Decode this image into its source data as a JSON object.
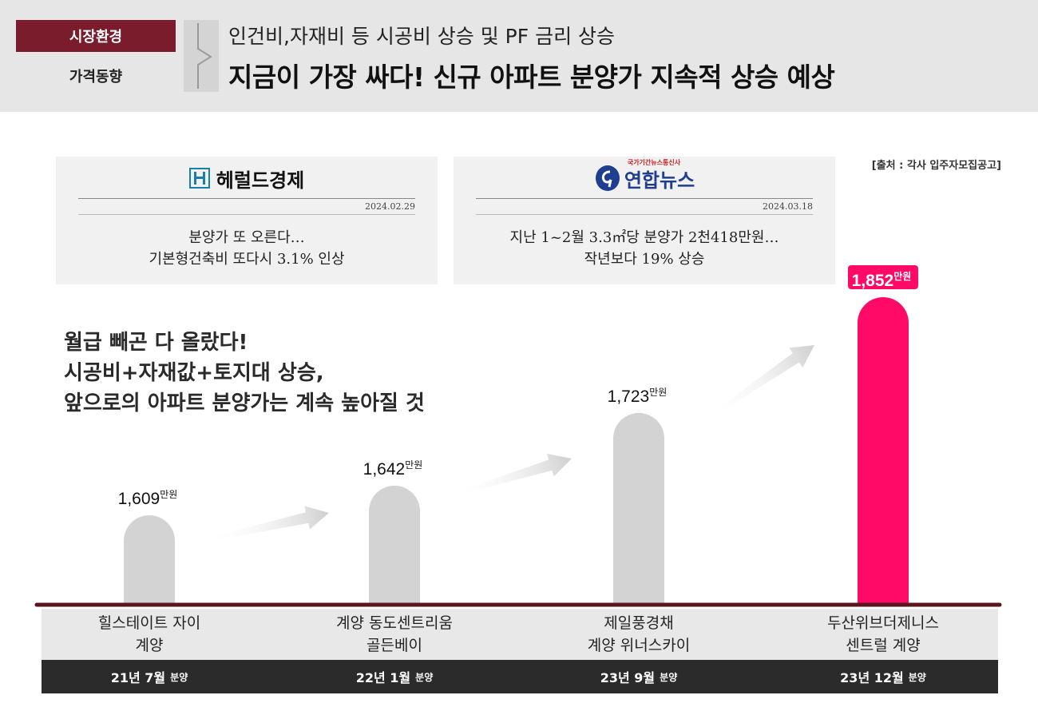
{
  "header": {
    "tag_primary": "시장환경",
    "tag_secondary": "가격동향",
    "subtitle": "인건비,자재비 등 시공비 상승 및 PF 금리 상승",
    "title": "지금이 가장 싸다! 신규 아파트 분양가 지속적 상승 예상"
  },
  "source": "[출처 : 각사 입주자모집공고]",
  "news": [
    {
      "publisher": "헤럴드경제",
      "date": "2024.02.29",
      "headline_line1": "분양가 또 오른다…",
      "headline_line2": "기본형건축비 또다시 3.1% 인상"
    },
    {
      "publisher": "연합뉴스",
      "publisher_tagline": "국가기간뉴스통신사",
      "date": "2024.03.18",
      "headline_line1": "지난 1~2월 3.3㎡당 분양가 2천418만원…",
      "headline_line2": "작년보다 19% 상승"
    }
  ],
  "narrative": {
    "line1": "월급 빼곤 다 올랐다!",
    "line2": "시공비+자재값+토지대 상승,",
    "line3": "앞으로의 아파트 분양가는 계속 높아질 것"
  },
  "colors": {
    "brand": "#7a1c2c",
    "bar_default": "#d3d3d3",
    "bar_highlight": "#ff0a66",
    "baseline": "#5a1520",
    "arrow": "#dcdcdc"
  },
  "chart_data": {
    "type": "bar",
    "unit": "만원",
    "categories": [
      [
        "힐스테이트 자이",
        "계양"
      ],
      [
        "계양 동도센트리움",
        "골든베이"
      ],
      [
        "제일풍경채",
        "계양 위너스카이"
      ],
      [
        "두산위브더제니스",
        "센트럴 계양"
      ]
    ],
    "periods": [
      "21년 7월",
      "22년 1월",
      "23년 9월",
      "23년 12월"
    ],
    "period_suffix": "분양",
    "values": [
      1609,
      1642,
      1723,
      1852
    ],
    "value_labels": [
      "1,609",
      "1,642",
      "1,723",
      "1,852"
    ],
    "highlight_index": 3
  }
}
